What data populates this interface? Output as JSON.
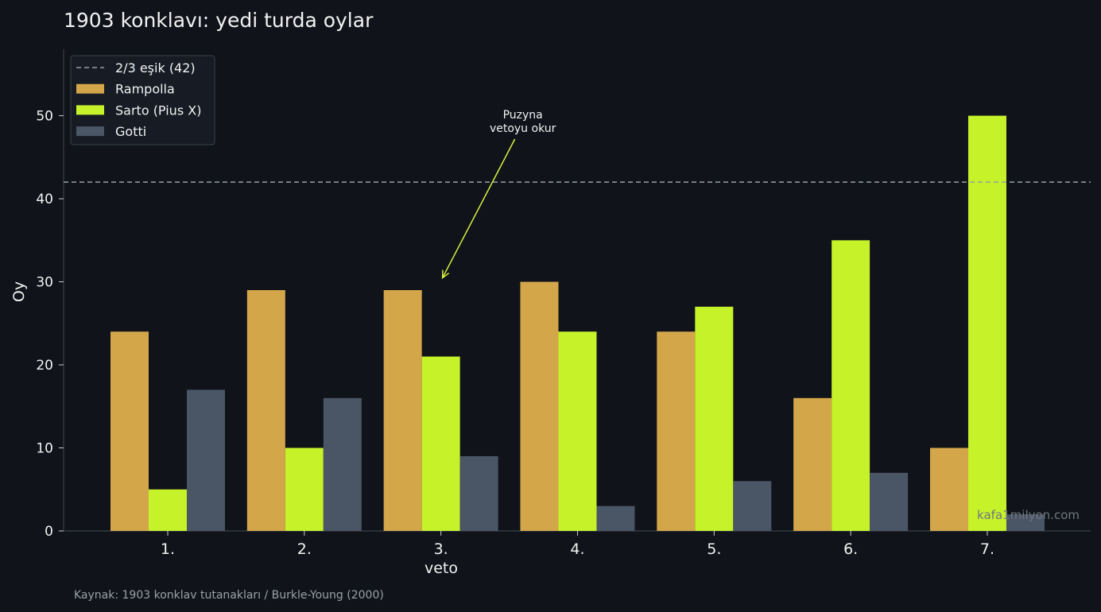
{
  "chart_data": {
    "type": "bar",
    "title": "1903 konklavı: yedi turda oylar",
    "xlabel": "veto",
    "ylabel": "Oy",
    "categories": [
      "1.",
      "2.",
      "3.",
      "4.",
      "5.",
      "6.",
      "7."
    ],
    "series": [
      {
        "name": "Rampolla",
        "color": "#d4a64a",
        "values": [
          24,
          29,
          29,
          30,
          24,
          16,
          10
        ]
      },
      {
        "name": "Sarto (Pius X)",
        "color": "#c6f22a",
        "values": [
          5,
          10,
          21,
          24,
          27,
          35,
          50
        ]
      },
      {
        "name": "Gotti",
        "color": "#4a5566",
        "values": [
          17,
          16,
          9,
          3,
          6,
          7,
          2
        ]
      }
    ],
    "yticks": [
      0,
      10,
      20,
      30,
      40,
      50
    ],
    "ylim": [
      0,
      58
    ],
    "threshold": {
      "value": 42,
      "label": "2/3 eşik (42)",
      "color": "#9aa0a8"
    },
    "annotation": {
      "lines": [
        "Puzyna",
        "vetoyu okur"
      ],
      "category_index": 2,
      "target_value": 30,
      "color": "#d8f040"
    },
    "legend_position": "top-left",
    "grid": false
  },
  "footer": {
    "source": "Kaynak: 1903 konklav tutanakları / Burkle-Young (2000)",
    "watermark": "kafa1milyon.com"
  }
}
